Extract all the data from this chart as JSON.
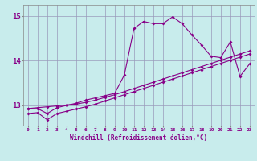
{
  "xlabel": "Windchill (Refroidissement éolien,°C)",
  "bg_color": "#c8ecec",
  "grid_color": "#9999bb",
  "line_color": "#880088",
  "xlim": [
    -0.5,
    23.5
  ],
  "ylim": [
    12.55,
    15.25
  ],
  "yticks": [
    13,
    14,
    15
  ],
  "xticks": [
    0,
    1,
    2,
    3,
    4,
    5,
    6,
    7,
    8,
    9,
    10,
    11,
    12,
    13,
    14,
    15,
    16,
    17,
    18,
    19,
    20,
    21,
    22,
    23
  ],
  "line1_x": [
    0,
    1,
    2,
    3,
    4,
    5,
    6,
    7,
    8,
    9,
    10,
    11,
    12,
    13,
    14,
    15,
    16,
    17,
    18,
    19,
    20,
    21,
    22,
    23
  ],
  "line1_y": [
    12.93,
    12.93,
    12.82,
    12.95,
    13.0,
    13.05,
    13.12,
    13.17,
    13.22,
    13.27,
    13.68,
    14.72,
    14.88,
    14.83,
    14.83,
    14.98,
    14.83,
    14.58,
    14.35,
    14.1,
    14.07,
    14.42,
    13.65,
    13.93
  ],
  "line2_x": [
    0,
    1,
    2,
    3,
    4,
    5,
    6,
    7,
    8,
    9,
    10,
    11,
    12,
    13,
    14,
    15,
    16,
    17,
    18,
    19,
    20,
    21,
    22,
    23
  ],
  "line2_y": [
    12.93,
    12.95,
    12.97,
    12.99,
    13.01,
    13.03,
    13.07,
    13.12,
    13.18,
    13.24,
    13.31,
    13.38,
    13.45,
    13.52,
    13.59,
    13.66,
    13.73,
    13.8,
    13.87,
    13.94,
    14.01,
    14.08,
    14.15,
    14.22
  ],
  "line3_x": [
    0,
    1,
    2,
    3,
    4,
    5,
    6,
    7,
    8,
    9,
    10,
    11,
    12,
    13,
    14,
    15,
    16,
    17,
    18,
    19,
    20,
    21,
    22,
    23
  ],
  "line3_y": [
    12.82,
    12.84,
    12.68,
    12.82,
    12.87,
    12.92,
    12.97,
    13.03,
    13.1,
    13.17,
    13.24,
    13.31,
    13.38,
    13.45,
    13.52,
    13.59,
    13.66,
    13.73,
    13.8,
    13.87,
    13.94,
    14.01,
    14.08,
    14.15
  ]
}
